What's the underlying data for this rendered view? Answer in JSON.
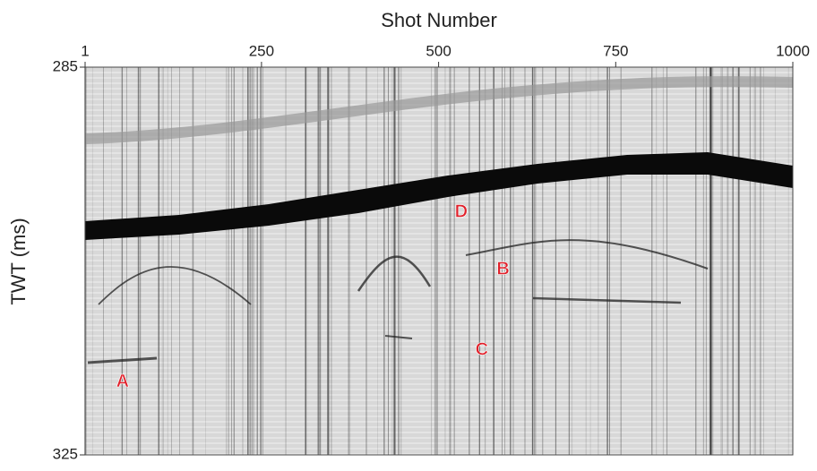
{
  "chart_data": {
    "type": "seismic",
    "title": "Shot Number",
    "y_label": "TWT (ms)",
    "xlim": [
      1,
      1000
    ],
    "xticks": [
      1,
      250,
      500,
      750,
      1000
    ],
    "ylim": [
      285,
      325
    ],
    "yticks": [
      285,
      325
    ],
    "annotations": [
      {
        "text": "D",
        "x": 532,
        "y": 300
      },
      {
        "text": "B",
        "x": 591,
        "y": 305.9
      },
      {
        "text": "C",
        "x": 561,
        "y": 314.2
      },
      {
        "text": "A",
        "x": 54,
        "y": 317.5
      }
    ]
  }
}
